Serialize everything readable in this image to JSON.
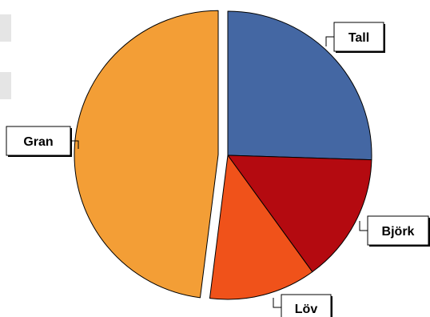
{
  "chart_data": {
    "type": "pie",
    "title": "",
    "legend": "none",
    "slices": [
      {
        "label": "Tall",
        "value": 25.5,
        "color": "#4467a3"
      },
      {
        "label": "Björk",
        "value": 14.5,
        "color": "#b40a10"
      },
      {
        "label": "Löv",
        "value": 12.0,
        "color": "#f0521a"
      },
      {
        "label": "Gran",
        "value": 48.0,
        "color": "#f39e36",
        "exploded": true
      }
    ]
  }
}
